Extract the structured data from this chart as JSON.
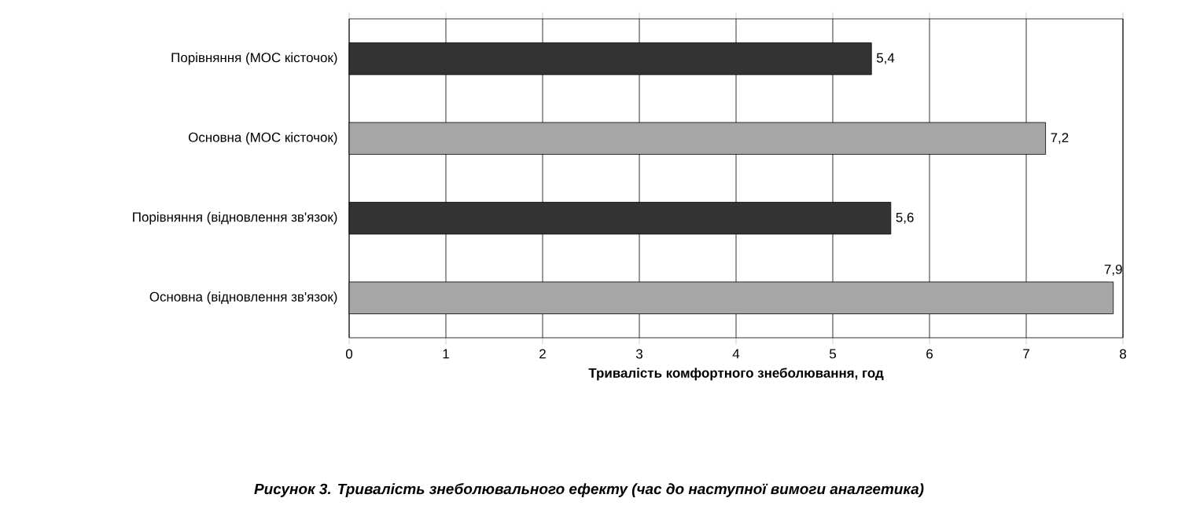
{
  "chart_data": {
    "type": "bar",
    "orientation": "horizontal",
    "title": "Рисунок 3. Тривалість знеболювального ефекту (час до наступної вимоги аналгетика)",
    "xlabel": "Тривалість комфортного знеболювання, год",
    "categories": [
      "Порівняння (МОС кісточок)",
      "Основна (МОС кісточок)",
      "Порівняння (відновлення зв'язок)",
      "Основна (відновлення зв'язок)"
    ],
    "values": [
      5.4,
      7.2,
      5.6,
      7.9
    ],
    "value_labels": [
      "5,4",
      "7,2",
      "5,6",
      "7,9"
    ],
    "colors": [
      "#333333",
      "#a6a6a6",
      "#333333",
      "#a6a6a6"
    ],
    "xlim": [
      0,
      8
    ],
    "xticks": [
      0,
      1,
      2,
      3,
      4,
      5,
      6,
      7,
      8
    ],
    "grid": "x"
  }
}
